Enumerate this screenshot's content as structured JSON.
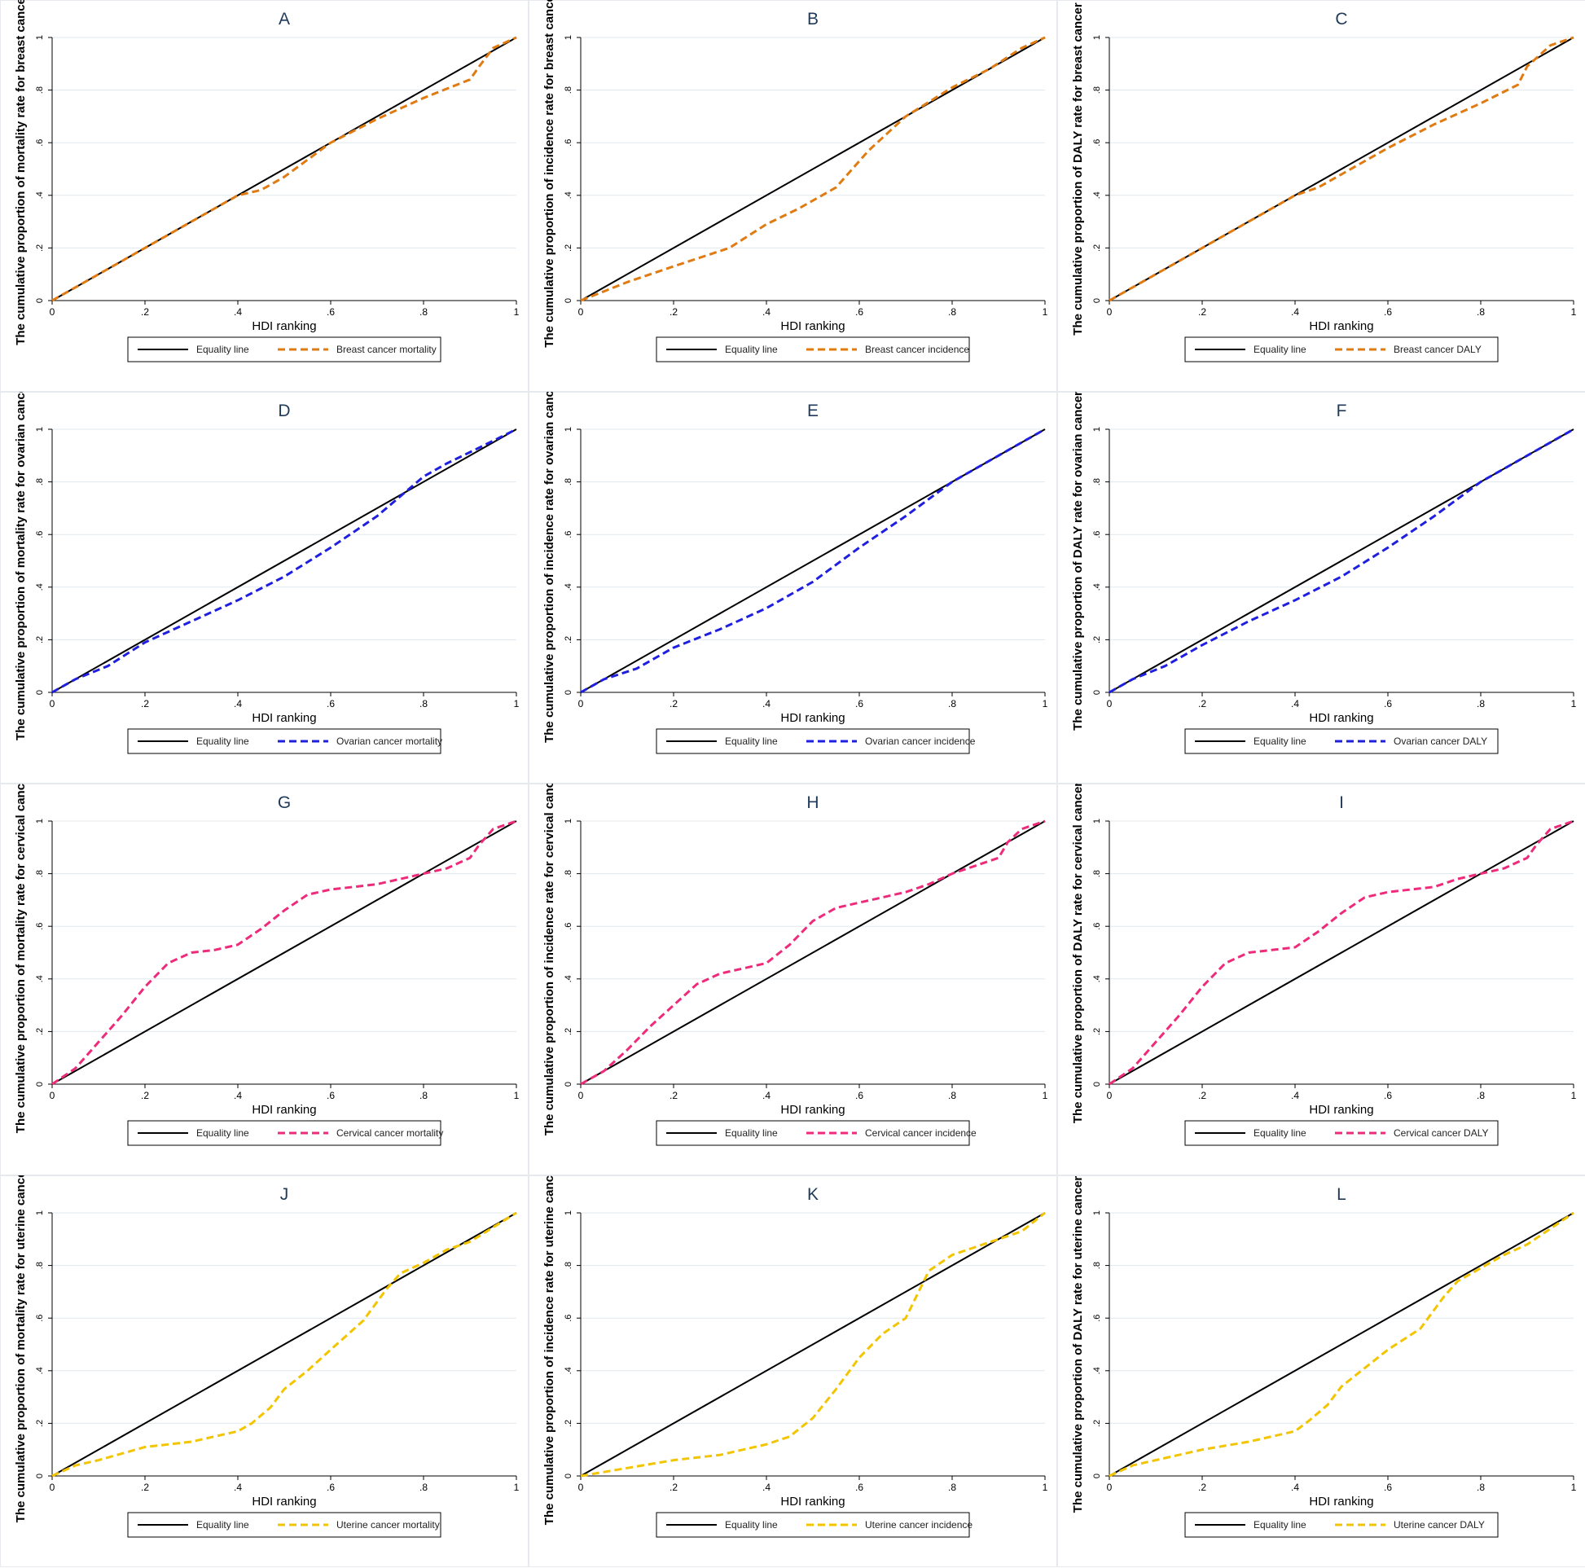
{
  "colors": {
    "equality": "#000000",
    "breast": "#E07B12",
    "ovarian": "#1F1FE0",
    "cervical": "#EE2A7B",
    "uterine": "#F2C500",
    "panel_border": "#e6e9ee",
    "gridline": "#e1e8ee",
    "axis": "#000000",
    "title": "#1f3a5a"
  },
  "chart_data": [
    {
      "type": "line",
      "panel": "A",
      "title": "A",
      "xlabel": "HDI ranking",
      "ylabel": "The cumulative proportion of mortality rate for breast cancer",
      "xlim": [
        0,
        1
      ],
      "ylim": [
        0,
        1
      ],
      "xticks": [
        "0",
        ".2",
        ".4",
        ".6",
        ".8",
        "1"
      ],
      "yticks": [
        "0",
        ".2",
        ".4",
        ".6",
        ".8",
        "1"
      ],
      "grid": true,
      "legend": "bottom",
      "series": [
        {
          "name": "Equality line",
          "color": "equality",
          "dash": false,
          "x": [
            0,
            1
          ],
          "y": [
            0,
            1
          ]
        },
        {
          "name": "Breast cancer mortality",
          "color": "breast",
          "dash": true,
          "x": [
            0,
            0.1,
            0.2,
            0.3,
            0.4,
            0.45,
            0.5,
            0.6,
            0.7,
            0.8,
            0.9,
            0.92,
            0.95,
            1
          ],
          "y": [
            0,
            0.1,
            0.2,
            0.3,
            0.4,
            0.42,
            0.47,
            0.6,
            0.69,
            0.77,
            0.84,
            0.89,
            0.96,
            1
          ]
        }
      ]
    },
    {
      "type": "line",
      "panel": "B",
      "title": "B",
      "xlabel": "HDI ranking",
      "ylabel": "The cumulative proportion of incidence rate for breast cancer",
      "xlim": [
        0,
        1
      ],
      "ylim": [
        0,
        1
      ],
      "xticks": [
        "0",
        ".2",
        ".4",
        ".6",
        ".8",
        "1"
      ],
      "yticks": [
        "0",
        ".2",
        ".4",
        ".6",
        ".8",
        "1"
      ],
      "grid": true,
      "legend": "bottom",
      "series": [
        {
          "name": "Equality line",
          "color": "equality",
          "dash": false,
          "x": [
            0,
            1
          ],
          "y": [
            0,
            1
          ]
        },
        {
          "name": "Breast cancer incidence",
          "color": "breast",
          "dash": true,
          "x": [
            0,
            0.1,
            0.2,
            0.32,
            0.4,
            0.47,
            0.55,
            0.62,
            0.7,
            0.8,
            0.88,
            0.95,
            1
          ],
          "y": [
            0,
            0.07,
            0.13,
            0.2,
            0.29,
            0.35,
            0.43,
            0.57,
            0.7,
            0.81,
            0.88,
            0.96,
            1
          ]
        }
      ]
    },
    {
      "type": "line",
      "panel": "C",
      "title": "C",
      "xlabel": "HDI ranking",
      "ylabel": "The cumulative proportion of DALY rate for breast cancer",
      "xlim": [
        0,
        1
      ],
      "ylim": [
        0,
        1
      ],
      "xticks": [
        "0",
        ".2",
        ".4",
        ".6",
        ".8",
        "1"
      ],
      "yticks": [
        "0",
        ".2",
        ".4",
        ".6",
        ".8",
        "1"
      ],
      "grid": true,
      "legend": "bottom",
      "series": [
        {
          "name": "Equality line",
          "color": "equality",
          "dash": false,
          "x": [
            0,
            1
          ],
          "y": [
            0,
            1
          ]
        },
        {
          "name": "Breast cancer DALY",
          "color": "breast",
          "dash": true,
          "x": [
            0,
            0.1,
            0.2,
            0.3,
            0.4,
            0.45,
            0.5,
            0.6,
            0.7,
            0.8,
            0.88,
            0.9,
            0.95,
            1
          ],
          "y": [
            0,
            0.1,
            0.2,
            0.3,
            0.4,
            0.43,
            0.48,
            0.58,
            0.67,
            0.75,
            0.82,
            0.89,
            0.97,
            1
          ]
        }
      ]
    },
    {
      "type": "line",
      "panel": "D",
      "title": "D",
      "xlabel": "HDI ranking",
      "ylabel": "The cumulative proportion of mortality rate for ovarian cancer",
      "xlim": [
        0,
        1
      ],
      "ylim": [
        0,
        1
      ],
      "xticks": [
        "0",
        ".2",
        ".4",
        ".6",
        ".8",
        "1"
      ],
      "yticks": [
        "0",
        ".2",
        ".4",
        ".6",
        ".8",
        "1"
      ],
      "grid": true,
      "legend": "bottom",
      "series": [
        {
          "name": "Equality line",
          "color": "equality",
          "dash": false,
          "x": [
            0,
            1
          ],
          "y": [
            0,
            1
          ]
        },
        {
          "name": "Ovarian cancer mortality",
          "color": "ovarian",
          "dash": true,
          "x": [
            0,
            0.05,
            0.12,
            0.2,
            0.3,
            0.4,
            0.5,
            0.6,
            0.7,
            0.76,
            0.8,
            0.85,
            0.92,
            1
          ],
          "y": [
            0,
            0.05,
            0.1,
            0.19,
            0.27,
            0.35,
            0.44,
            0.55,
            0.67,
            0.76,
            0.82,
            0.87,
            0.93,
            1
          ]
        }
      ]
    },
    {
      "type": "line",
      "panel": "E",
      "title": "E",
      "xlabel": "HDI ranking",
      "ylabel": "The cumulative proportion of incidence rate for ovarian cancer",
      "xlim": [
        0,
        1
      ],
      "ylim": [
        0,
        1
      ],
      "xticks": [
        "0",
        ".2",
        ".4",
        ".6",
        ".8",
        "1"
      ],
      "yticks": [
        "0",
        ".2",
        ".4",
        ".6",
        ".8",
        "1"
      ],
      "grid": true,
      "legend": "bottom",
      "series": [
        {
          "name": "Equality line",
          "color": "equality",
          "dash": false,
          "x": [
            0,
            1
          ],
          "y": [
            0,
            1
          ]
        },
        {
          "name": "Ovarian cancer incidence",
          "color": "ovarian",
          "dash": true,
          "x": [
            0,
            0.05,
            0.12,
            0.2,
            0.3,
            0.4,
            0.5,
            0.6,
            0.7,
            0.8,
            0.9,
            1
          ],
          "y": [
            0,
            0.05,
            0.09,
            0.17,
            0.24,
            0.32,
            0.42,
            0.55,
            0.67,
            0.8,
            0.9,
            1
          ]
        }
      ]
    },
    {
      "type": "line",
      "panel": "F",
      "title": "F",
      "xlabel": "HDI ranking",
      "ylabel": "The cumulative proportion of DALY rate for ovarian cancer",
      "xlim": [
        0,
        1
      ],
      "ylim": [
        0,
        1
      ],
      "xticks": [
        "0",
        ".2",
        ".4",
        ".6",
        ".8",
        "1"
      ],
      "yticks": [
        "0",
        ".2",
        ".4",
        ".6",
        ".8",
        "1"
      ],
      "grid": true,
      "legend": "bottom",
      "series": [
        {
          "name": "Equality line",
          "color": "equality",
          "dash": false,
          "x": [
            0,
            1
          ],
          "y": [
            0,
            1
          ]
        },
        {
          "name": "Ovarian cancer DALY",
          "color": "ovarian",
          "dash": true,
          "x": [
            0,
            0.05,
            0.12,
            0.2,
            0.3,
            0.4,
            0.5,
            0.6,
            0.7,
            0.8,
            0.88,
            0.95,
            1
          ],
          "y": [
            0,
            0.05,
            0.1,
            0.18,
            0.27,
            0.35,
            0.44,
            0.55,
            0.67,
            0.8,
            0.88,
            0.95,
            1
          ]
        }
      ]
    },
    {
      "type": "line",
      "panel": "G",
      "title": "G",
      "xlabel": "HDI ranking",
      "ylabel": "The cumulative proportion of mortality rate for cervical cancer",
      "xlim": [
        0,
        1
      ],
      "ylim": [
        0,
        1
      ],
      "xticks": [
        "0",
        ".2",
        ".4",
        ".6",
        ".8",
        "1"
      ],
      "yticks": [
        "0",
        ".2",
        ".4",
        ".6",
        ".8",
        "1"
      ],
      "grid": true,
      "legend": "bottom",
      "series": [
        {
          "name": "Equality line",
          "color": "equality",
          "dash": false,
          "x": [
            0,
            1
          ],
          "y": [
            0,
            1
          ]
        },
        {
          "name": "Cervical cancer mortality",
          "color": "cervical",
          "dash": true,
          "x": [
            0,
            0.05,
            0.1,
            0.15,
            0.2,
            0.25,
            0.3,
            0.35,
            0.4,
            0.45,
            0.5,
            0.55,
            0.6,
            0.65,
            0.7,
            0.75,
            0.8,
            0.85,
            0.9,
            0.92,
            0.95,
            1
          ],
          "y": [
            0,
            0.06,
            0.16,
            0.26,
            0.37,
            0.46,
            0.5,
            0.51,
            0.53,
            0.59,
            0.66,
            0.72,
            0.74,
            0.75,
            0.76,
            0.78,
            0.8,
            0.82,
            0.86,
            0.91,
            0.97,
            1
          ]
        }
      ]
    },
    {
      "type": "line",
      "panel": "H",
      "title": "H",
      "xlabel": "HDI ranking",
      "ylabel": "The cumulative proportion of incidence rate for cervical cancer",
      "xlim": [
        0,
        1
      ],
      "ylim": [
        0,
        1
      ],
      "xticks": [
        "0",
        ".2",
        ".4",
        ".6",
        ".8",
        "1"
      ],
      "yticks": [
        "0",
        ".2",
        ".4",
        ".6",
        ".8",
        "1"
      ],
      "grid": true,
      "legend": "bottom",
      "series": [
        {
          "name": "Equality line",
          "color": "equality",
          "dash": false,
          "x": [
            0,
            1
          ],
          "y": [
            0,
            1
          ]
        },
        {
          "name": "Cervical cancer incidence",
          "color": "cervical",
          "dash": true,
          "x": [
            0,
            0.05,
            0.1,
            0.15,
            0.2,
            0.25,
            0.3,
            0.35,
            0.4,
            0.45,
            0.5,
            0.55,
            0.6,
            0.65,
            0.7,
            0.75,
            0.8,
            0.85,
            0.9,
            0.92,
            0.95,
            1
          ],
          "y": [
            0,
            0.05,
            0.13,
            0.22,
            0.3,
            0.38,
            0.42,
            0.44,
            0.46,
            0.53,
            0.62,
            0.67,
            0.69,
            0.71,
            0.73,
            0.76,
            0.8,
            0.83,
            0.86,
            0.92,
            0.97,
            1
          ]
        }
      ]
    },
    {
      "type": "line",
      "panel": "I",
      "title": "I",
      "xlabel": "HDI ranking",
      "ylabel": "The cumulative proportion of DALY rate for cervical cancer",
      "xlim": [
        0,
        1
      ],
      "ylim": [
        0,
        1
      ],
      "xticks": [
        "0",
        ".2",
        ".4",
        ".6",
        ".8",
        "1"
      ],
      "yticks": [
        "0",
        ".2",
        ".4",
        ".6",
        ".8",
        "1"
      ],
      "grid": true,
      "legend": "bottom",
      "series": [
        {
          "name": "Equality line",
          "color": "equality",
          "dash": false,
          "x": [
            0,
            1
          ],
          "y": [
            0,
            1
          ]
        },
        {
          "name": "Cervical cancer DALY",
          "color": "cervical",
          "dash": true,
          "x": [
            0,
            0.05,
            0.1,
            0.15,
            0.2,
            0.25,
            0.3,
            0.35,
            0.4,
            0.45,
            0.5,
            0.55,
            0.6,
            0.65,
            0.7,
            0.75,
            0.8,
            0.85,
            0.9,
            0.92,
            0.95,
            1
          ],
          "y": [
            0,
            0.06,
            0.16,
            0.26,
            0.37,
            0.46,
            0.5,
            0.51,
            0.52,
            0.58,
            0.65,
            0.71,
            0.73,
            0.74,
            0.75,
            0.78,
            0.8,
            0.82,
            0.86,
            0.91,
            0.97,
            1
          ]
        }
      ]
    },
    {
      "type": "line",
      "panel": "J",
      "title": "J",
      "xlabel": "HDI ranking",
      "ylabel": "The cumulative proportion of mortality rate for uterine cancer",
      "xlim": [
        0,
        1
      ],
      "ylim": [
        0,
        1
      ],
      "xticks": [
        "0",
        ".2",
        ".4",
        ".6",
        ".8",
        "1"
      ],
      "yticks": [
        "0",
        ".2",
        ".4",
        ".6",
        ".8",
        "1"
      ],
      "grid": true,
      "legend": "bottom",
      "series": [
        {
          "name": "Equality line",
          "color": "equality",
          "dash": false,
          "x": [
            0,
            1
          ],
          "y": [
            0,
            1
          ]
        },
        {
          "name": "Uterine cancer mortality",
          "color": "uterine",
          "dash": true,
          "x": [
            0,
            0.05,
            0.1,
            0.2,
            0.3,
            0.4,
            0.43,
            0.47,
            0.5,
            0.55,
            0.6,
            0.67,
            0.72,
            0.75,
            0.8,
            0.85,
            0.9,
            1
          ],
          "y": [
            0,
            0.04,
            0.06,
            0.11,
            0.13,
            0.17,
            0.2,
            0.26,
            0.33,
            0.4,
            0.48,
            0.59,
            0.71,
            0.77,
            0.81,
            0.86,
            0.89,
            1
          ]
        }
      ]
    },
    {
      "type": "line",
      "panel": "K",
      "title": "K",
      "xlabel": "HDI ranking",
      "ylabel": "The cumulative proportion of incidence rate for uterine cancer",
      "xlim": [
        0,
        1
      ],
      "ylim": [
        0,
        1
      ],
      "xticks": [
        "0",
        ".2",
        ".4",
        ".6",
        ".8",
        "1"
      ],
      "yticks": [
        "0",
        ".2",
        ".4",
        ".6",
        ".8",
        "1"
      ],
      "grid": true,
      "legend": "bottom",
      "series": [
        {
          "name": "Equality line",
          "color": "equality",
          "dash": false,
          "x": [
            0,
            1
          ],
          "y": [
            0,
            1
          ]
        },
        {
          "name": "Uterine cancer incidence",
          "color": "uterine",
          "dash": true,
          "x": [
            0,
            0.1,
            0.2,
            0.3,
            0.4,
            0.45,
            0.5,
            0.55,
            0.6,
            0.65,
            0.7,
            0.75,
            0.8,
            0.85,
            0.9,
            0.95,
            1
          ],
          "y": [
            0,
            0.03,
            0.06,
            0.08,
            0.12,
            0.15,
            0.22,
            0.33,
            0.45,
            0.54,
            0.6,
            0.78,
            0.84,
            0.87,
            0.9,
            0.93,
            1
          ]
        }
      ]
    },
    {
      "type": "line",
      "panel": "L",
      "title": "L",
      "xlabel": "HDI ranking",
      "ylabel": "The cumulative proportion of DALY rate for uterine cancer",
      "xlim": [
        0,
        1
      ],
      "ylim": [
        0,
        1
      ],
      "xticks": [
        "0",
        ".2",
        ".4",
        ".6",
        ".8",
        "1"
      ],
      "yticks": [
        "0",
        ".2",
        ".4",
        ".6",
        ".8",
        "1"
      ],
      "grid": true,
      "legend": "bottom",
      "series": [
        {
          "name": "Equality line",
          "color": "equality",
          "dash": false,
          "x": [
            0,
            1
          ],
          "y": [
            0,
            1
          ]
        },
        {
          "name": "Uterine cancer DALY",
          "color": "uterine",
          "dash": true,
          "x": [
            0,
            0.05,
            0.1,
            0.2,
            0.3,
            0.4,
            0.43,
            0.47,
            0.5,
            0.55,
            0.6,
            0.67,
            0.72,
            0.75,
            0.8,
            0.85,
            0.9,
            1
          ],
          "y": [
            0,
            0.04,
            0.06,
            0.1,
            0.13,
            0.17,
            0.21,
            0.27,
            0.34,
            0.41,
            0.48,
            0.56,
            0.68,
            0.74,
            0.79,
            0.84,
            0.88,
            1
          ]
        }
      ]
    }
  ]
}
